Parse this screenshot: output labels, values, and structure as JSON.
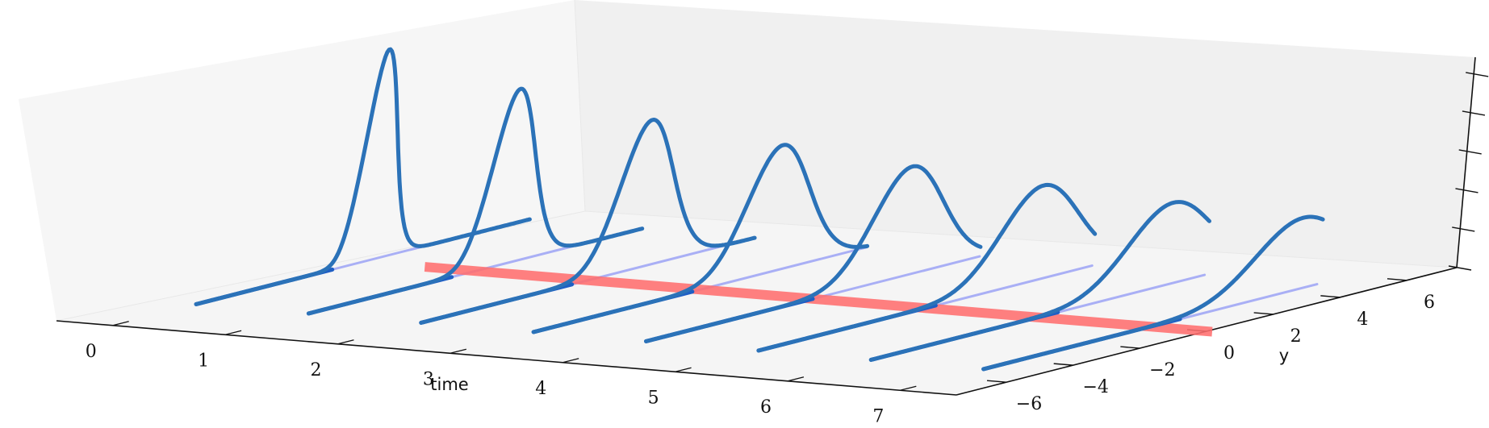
{
  "chart_data": {
    "type": "line",
    "view": "3d-waterfall",
    "title": "",
    "xlabel": "time",
    "ylabel": "y",
    "zlabel": "",
    "x_ticks": [
      "0",
      "1",
      "2",
      "3",
      "4",
      "5",
      "6",
      "7"
    ],
    "y_ticks": [
      "−6",
      "−4",
      "−2",
      "0",
      "2",
      "4",
      "6"
    ],
    "z_tick_count": 6,
    "xlim": [
      -0.5,
      7.5
    ],
    "ylim": [
      -7.5,
      7.5
    ],
    "zlim": [
      0,
      1
    ],
    "grid": false,
    "legend": "none",
    "curves": {
      "times": [
        0,
        1,
        2,
        3,
        4,
        5,
        6,
        7
      ],
      "y_range": [
        -5,
        5
      ],
      "centers": [
        0.25,
        0.9,
        1.55,
        2.15,
        2.7,
        3.3,
        3.85,
        4.4
      ],
      "widths": [
        0.45,
        0.62,
        0.78,
        0.92,
        1.04,
        1.15,
        1.25,
        1.35
      ],
      "peaks": [
        1.0,
        0.83,
        0.7,
        0.6,
        0.52,
        0.45,
        0.39,
        0.34
      ]
    },
    "reference_line": {
      "y": 0,
      "x_from": 0.55,
      "x_to": 7.55,
      "z": 0
    },
    "colors": {
      "curve": "#2b72b8",
      "baseline": "#1f5fc4",
      "projection": "#a9aff5",
      "reference": "#ff6e6e",
      "axis": "#111111"
    }
  }
}
